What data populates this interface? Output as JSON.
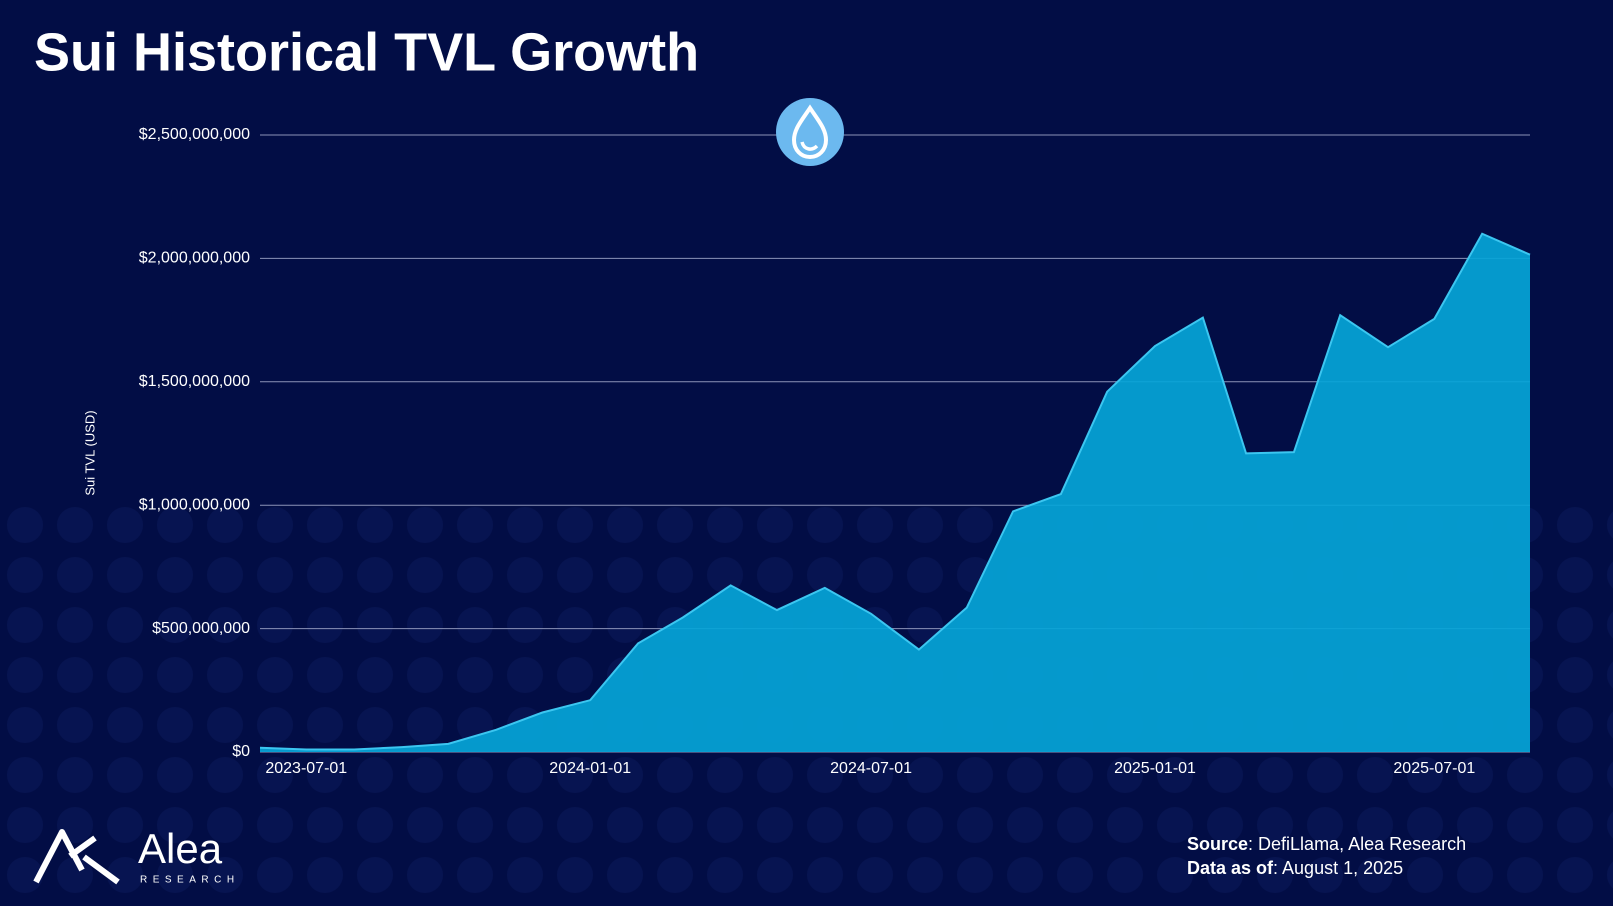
{
  "chart_data": {
    "type": "area",
    "title": "Sui Historical TVL Growth",
    "y_label": "Sui TVL (USD)",
    "x": [
      "2023-06-01",
      "2023-07-01",
      "2023-08-01",
      "2023-09-01",
      "2023-10-01",
      "2023-11-01",
      "2023-12-01",
      "2024-01-01",
      "2024-02-01",
      "2024-03-01",
      "2024-04-01",
      "2024-05-01",
      "2024-06-01",
      "2024-07-01",
      "2024-08-01",
      "2024-09-01",
      "2024-10-01",
      "2024-11-01",
      "2024-12-01",
      "2025-01-01",
      "2025-02-01",
      "2025-03-01",
      "2025-04-01",
      "2025-05-01",
      "2025-06-01",
      "2025-07-01",
      "2025-08-01",
      "2025-09-01"
    ],
    "values": [
      17000000,
      10000000,
      10000000,
      20000000,
      33000000,
      90000000,
      160000000,
      210000000,
      440000000,
      545000000,
      675000000,
      575000000,
      665000000,
      560000000,
      415000000,
      585000000,
      975000000,
      1045000000,
      1460000000,
      1645000000,
      1760000000,
      1210000000,
      1215000000,
      1770000000,
      1640000000,
      1755000000,
      2100000000,
      2015000000
    ],
    "color": "#05a5d8",
    "line_color": "#3cc6f0",
    "xlim": [
      "2023-06-01",
      "2025-09-01"
    ],
    "xticks": [
      "2023-07-01",
      "2024-01-01",
      "2024-07-01",
      "2025-01-01",
      "2025-07-01"
    ],
    "ylim": [
      0,
      2500000000
    ],
    "yticks": [
      {
        "value": 0,
        "label": "$0"
      },
      {
        "value": 500000000,
        "label": "$500,000,000"
      },
      {
        "value": 1000000000,
        "label": "$1,000,000,000"
      },
      {
        "value": 1500000000,
        "label": "$1,500,000,000"
      },
      {
        "value": 2000000000,
        "label": "$2,000,000,000"
      },
      {
        "value": 2500000000,
        "label": "$2,500,000,000"
      }
    ],
    "grid": true
  },
  "footer": {
    "source_label": "Source",
    "source": ": DefiLlama, Alea Research",
    "date_label": "Data as of",
    "date": ": August 1, 2025"
  },
  "brand": {
    "name": "Alea",
    "sub": "RESEARCH"
  }
}
